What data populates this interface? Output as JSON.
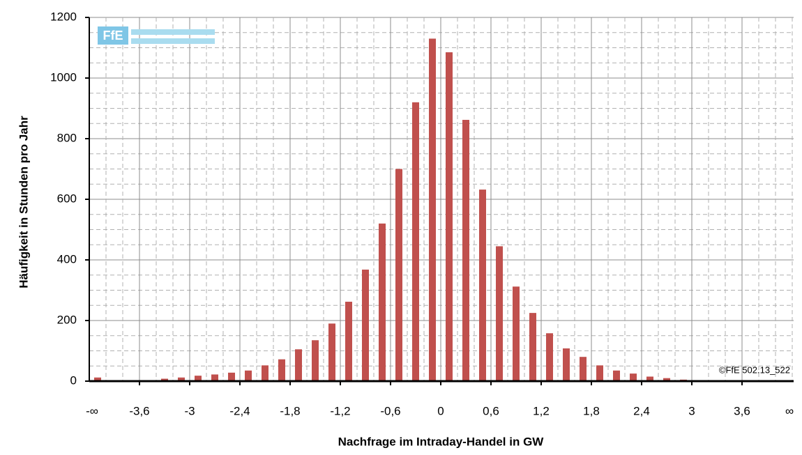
{
  "chart_data": {
    "type": "bar",
    "logo": "FfE",
    "annotation": "©FfE 502.13_522",
    "xlabel": "Nachfrage im Intraday-Handel in GW",
    "ylabel": "Häufigkeit in Stunden pro Jahr",
    "color": "#c0504d",
    "grid": true,
    "categories": [
      "-∞",
      null,
      null,
      null,
      null,
      null,
      null,
      null,
      null,
      null,
      null,
      null,
      null,
      null,
      null,
      null,
      null,
      null,
      null,
      null,
      null,
      null,
      null,
      null,
      null,
      null,
      null,
      null,
      null,
      null,
      null,
      null,
      null,
      null,
      null,
      null,
      null,
      null,
      null,
      null,
      null,
      "∞"
    ],
    "values": [
      12,
      0,
      0,
      0,
      8,
      12,
      18,
      22,
      28,
      35,
      52,
      72,
      105,
      135,
      190,
      262,
      368,
      520,
      700,
      920,
      1130,
      1085,
      862,
      632,
      445,
      312,
      225,
      158,
      108,
      80,
      52,
      35,
      25,
      15,
      10,
      5,
      0,
      0,
      0,
      0,
      0,
      0
    ],
    "xticks": [
      {
        "value": -3.6,
        "label": "-3,6"
      },
      -3,
      {
        "value": -2.4,
        "label": "-2,4"
      },
      {
        "value": -1.8,
        "label": "-1,8"
      },
      {
        "value": -1.2,
        "label": "-1,2"
      },
      {
        "value": -0.6,
        "label": "-0,6"
      },
      0,
      {
        "value": 0.6,
        "label": "0,6"
      },
      {
        "value": 1.2,
        "label": "1,2"
      },
      {
        "value": 1.8,
        "label": "1,8"
      },
      {
        "value": 2.4,
        "label": "2,4"
      },
      3,
      {
        "value": 3.6,
        "label": "3,6"
      }
    ],
    "ylim": [
      0,
      1200
    ],
    "yticks": [
      0,
      200,
      400,
      600,
      800,
      1000,
      1200
    ]
  }
}
